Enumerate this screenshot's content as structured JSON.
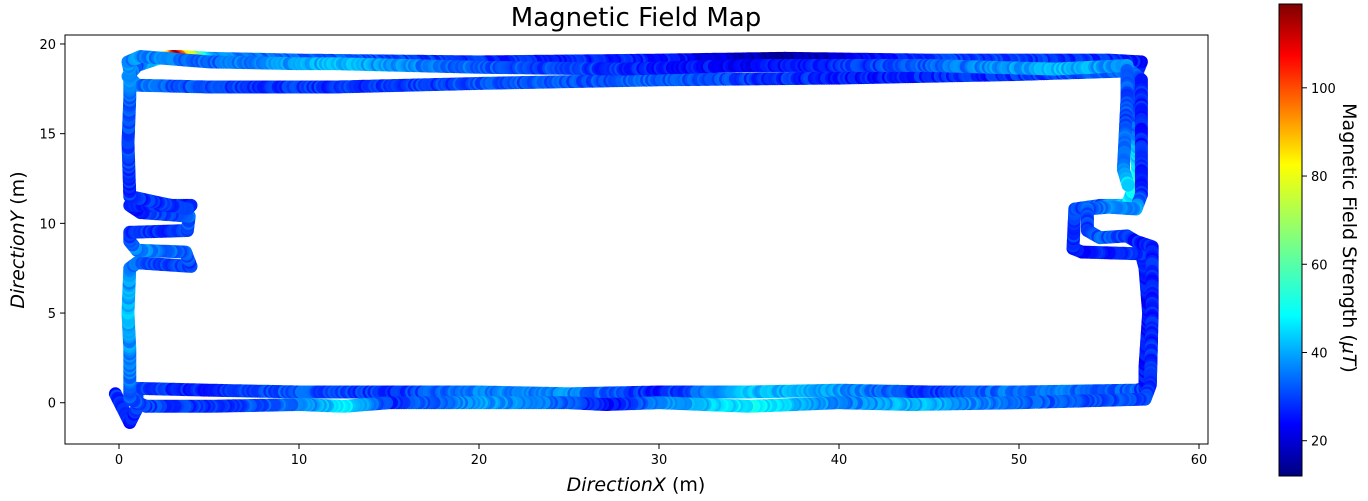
{
  "chart_data": {
    "type": "scatter",
    "title": "Magnetic Field Map",
    "xlabel_var": "DirectionX",
    "xlabel_unit": " (m)",
    "ylabel_var": "DirectionY",
    "ylabel_unit": " (m)",
    "colorbar_label_pre": "Magnetic Field Strength (",
    "colorbar_label_var": "μT",
    "colorbar_label_post": ")",
    "colormap": "jet",
    "xlim": [
      -3,
      60.5
    ],
    "ylim": [
      -2.3,
      20.5
    ],
    "xticks": [
      0,
      10,
      20,
      30,
      40,
      50,
      60
    ],
    "yticks": [
      0,
      5,
      10,
      15,
      20
    ],
    "colorbar_range": [
      12,
      119
    ],
    "colorbar_ticks": [
      20,
      40,
      60,
      80,
      100
    ],
    "grid": false,
    "path": [
      [
        -0.2,
        0.5,
        30
      ],
      [
        0.6,
        -1.1,
        28
      ],
      [
        1.0,
        -0.3,
        30
      ],
      [
        1.0,
        0.8,
        32
      ],
      [
        5,
        0.7,
        28
      ],
      [
        10,
        0.6,
        35
      ],
      [
        15,
        0.6,
        30
      ],
      [
        20,
        0.6,
        38
      ],
      [
        25,
        0.5,
        40
      ],
      [
        30,
        0.6,
        28
      ],
      [
        35,
        0.6,
        45
      ],
      [
        40,
        0.7,
        42
      ],
      [
        45,
        0.6,
        30
      ],
      [
        50,
        0.6,
        38
      ],
      [
        56.5,
        0.7,
        35
      ],
      [
        57.0,
        0.8,
        30
      ],
      [
        57.0,
        2.0,
        27
      ],
      [
        57.2,
        5.0,
        26
      ],
      [
        57.0,
        7.5,
        28
      ],
      [
        56.8,
        8.3,
        30
      ],
      [
        53.5,
        8.4,
        28
      ],
      [
        53.0,
        8.6,
        30
      ],
      [
        53.1,
        10.8,
        32
      ],
      [
        54.5,
        11.0,
        35
      ],
      [
        56.0,
        11.0,
        48
      ],
      [
        56.6,
        12.5,
        55
      ],
      [
        56.5,
        16.0,
        35
      ],
      [
        56.6,
        18.5,
        30
      ],
      [
        56.8,
        19.0,
        28
      ],
      [
        55.0,
        19.1,
        30
      ],
      [
        45,
        19.1,
        32
      ],
      [
        37,
        19.2,
        15
      ],
      [
        30,
        19.1,
        28
      ],
      [
        20,
        19.0,
        30
      ],
      [
        10,
        19.1,
        35
      ],
      [
        5,
        19.2,
        40
      ],
      [
        3.5,
        19.3,
        85
      ],
      [
        3.0,
        19.3,
        118
      ],
      [
        2.2,
        19.2,
        55
      ],
      [
        1.0,
        18.8,
        35
      ],
      [
        0.5,
        18.2,
        40
      ],
      [
        1.0,
        17.7,
        38
      ],
      [
        5,
        17.6,
        32
      ],
      [
        12,
        17.6,
        30
      ],
      [
        20,
        17.8,
        33
      ],
      [
        30,
        18.0,
        35
      ],
      [
        40,
        18.1,
        28
      ],
      [
        50,
        18.3,
        30
      ],
      [
        56.2,
        18.5,
        38
      ],
      [
        56.8,
        18.0,
        30
      ],
      [
        56.8,
        14.0,
        28
      ],
      [
        56.8,
        11.6,
        30
      ],
      [
        56.5,
        10.8,
        40
      ],
      [
        55.0,
        10.9,
        40
      ],
      [
        53.8,
        10.8,
        35
      ],
      [
        53.8,
        9.6,
        30
      ],
      [
        54.5,
        9.2,
        35
      ],
      [
        56.0,
        9.3,
        30
      ],
      [
        56.5,
        9.0,
        28
      ],
      [
        57.4,
        8.7,
        30
      ],
      [
        57.4,
        5.0,
        28
      ],
      [
        57.3,
        1.0,
        30
      ],
      [
        57.0,
        0.2,
        32
      ],
      [
        50,
        0.0,
        35
      ],
      [
        44,
        -0.1,
        45
      ],
      [
        40,
        0.0,
        38
      ],
      [
        35,
        -0.2,
        52
      ],
      [
        30,
        0.0,
        40
      ],
      [
        27,
        -0.1,
        25
      ],
      [
        25,
        0.0,
        35
      ],
      [
        20,
        0.0,
        42
      ],
      [
        15,
        0.0,
        30
      ],
      [
        12.5,
        -0.2,
        50
      ],
      [
        10,
        -0.1,
        38
      ],
      [
        5,
        -0.2,
        30
      ],
      [
        1.5,
        -0.2,
        32
      ],
      [
        0.6,
        0.2,
        35
      ],
      [
        0.6,
        3.0,
        40
      ],
      [
        0.5,
        5.0,
        45
      ],
      [
        0.6,
        7.5,
        40
      ],
      [
        1.0,
        7.8,
        35
      ],
      [
        4.0,
        7.6,
        30
      ],
      [
        3.7,
        8.4,
        35
      ],
      [
        1.0,
        8.5,
        40
      ],
      [
        0.6,
        9.0,
        35
      ],
      [
        0.6,
        9.5,
        30
      ],
      [
        3.8,
        9.6,
        32
      ],
      [
        3.9,
        10.4,
        35
      ],
      [
        1.2,
        10.6,
        30
      ],
      [
        0.6,
        11.0,
        28
      ],
      [
        4.0,
        11.0,
        30
      ],
      [
        3.8,
        10.8,
        32
      ],
      [
        0.6,
        11.5,
        30
      ],
      [
        0.5,
        14.5,
        32
      ],
      [
        0.6,
        17.0,
        35
      ],
      [
        0.6,
        18.5,
        40
      ],
      [
        0.5,
        19.0,
        38
      ],
      [
        1.2,
        19.3,
        40
      ],
      [
        5,
        19.0,
        35
      ],
      [
        10,
        18.9,
        42
      ],
      [
        12,
        18.9,
        45
      ],
      [
        20,
        18.7,
        35
      ],
      [
        28,
        18.6,
        30
      ],
      [
        35,
        18.8,
        25
      ],
      [
        40,
        18.8,
        30
      ],
      [
        45,
        18.8,
        35
      ],
      [
        52,
        18.6,
        45
      ],
      [
        56.0,
        18.8,
        40
      ],
      [
        56.0,
        17.0,
        32
      ],
      [
        55.8,
        13.0,
        38
      ],
      [
        56.1,
        12.0,
        50
      ]
    ]
  }
}
